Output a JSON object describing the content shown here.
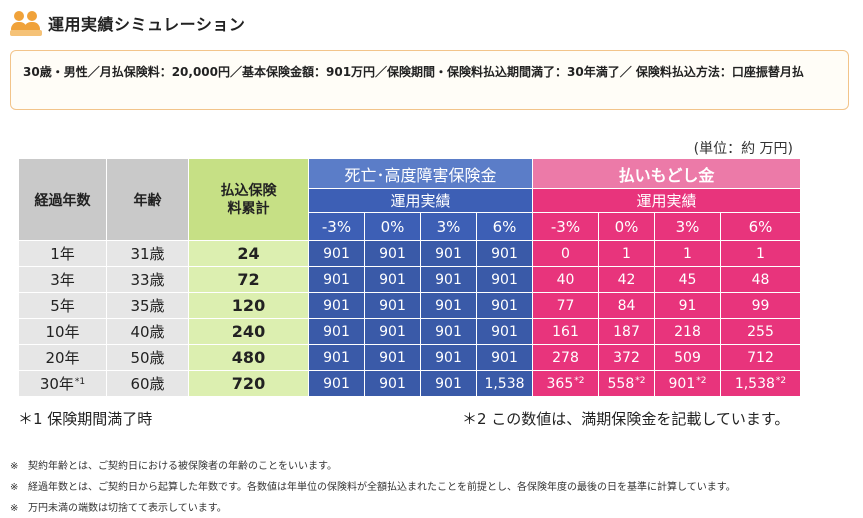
{
  "title": "運用実績シミュレーション",
  "condition": "30歳・男性／月払保険料：20,000円／基本保険金額：901万円／保険期間・保険料払込期間満了：30年満了／ 保険料払込方法：口座振替月払",
  "unit": "(単位：約 万円)",
  "table": {
    "col_elapsed": "経過年数",
    "col_age": "年齢",
    "col_paid": "払込保険料累計",
    "group_death": "死亡･高度障害保険金",
    "group_refund": "払いもどし金",
    "sub_performance": "運用実績",
    "rates": [
      "-3%",
      "0%",
      "3%",
      "6%"
    ],
    "rows": [
      {
        "year": "1年",
        "year_sup": "",
        "age": "31歳",
        "paid": "24",
        "death": [
          "901",
          "901",
          "901",
          "901"
        ],
        "refund": [
          "0",
          "1",
          "1",
          "1"
        ],
        "refund_sup": [
          "",
          "",
          "",
          ""
        ]
      },
      {
        "year": "3年",
        "year_sup": "",
        "age": "33歳",
        "paid": "72",
        "death": [
          "901",
          "901",
          "901",
          "901"
        ],
        "refund": [
          "40",
          "42",
          "45",
          "48"
        ],
        "refund_sup": [
          "",
          "",
          "",
          ""
        ]
      },
      {
        "year": "5年",
        "year_sup": "",
        "age": "35歳",
        "paid": "120",
        "death": [
          "901",
          "901",
          "901",
          "901"
        ],
        "refund": [
          "77",
          "84",
          "91",
          "99"
        ],
        "refund_sup": [
          "",
          "",
          "",
          ""
        ]
      },
      {
        "year": "10年",
        "year_sup": "",
        "age": "40歳",
        "paid": "240",
        "death": [
          "901",
          "901",
          "901",
          "901"
        ],
        "refund": [
          "161",
          "187",
          "218",
          "255"
        ],
        "refund_sup": [
          "",
          "",
          "",
          ""
        ]
      },
      {
        "year": "20年",
        "year_sup": "",
        "age": "50歳",
        "paid": "480",
        "death": [
          "901",
          "901",
          "901",
          "901"
        ],
        "refund": [
          "278",
          "372",
          "509",
          "712"
        ],
        "refund_sup": [
          "",
          "",
          "",
          ""
        ]
      },
      {
        "year": "30年",
        "year_sup": "*1",
        "age": "60歳",
        "paid": "720",
        "death": [
          "901",
          "901",
          "901",
          "1,538"
        ],
        "refund": [
          "365",
          "558",
          "901",
          "1,538"
        ],
        "refund_sup": [
          "*2",
          "*2",
          "*2",
          "*2"
        ]
      }
    ]
  },
  "footnote1": "＊1 保険期間満了時",
  "footnote2": "＊2 この数値は、満期保険金を記載しています。",
  "notes": [
    {
      "mark": "※",
      "text": "契約年齢とは、ご契約日における被保険者の年齢のことをいいます。"
    },
    {
      "mark": "※",
      "text": "経過年数とは、ご契約日から起算した年数です。各数値は年単位の保険料が全額払込まれたことを前提とし、各保険年度の最後の日を基準に計算しています。"
    },
    {
      "mark": "※",
      "text": "万円未満の端数は切捨てて表示しています。"
    }
  ],
  "colors": {
    "accent": "#f0a23a",
    "blue": "#3a5aa8",
    "pink": "#e8347c",
    "green": "#dcefb0"
  }
}
